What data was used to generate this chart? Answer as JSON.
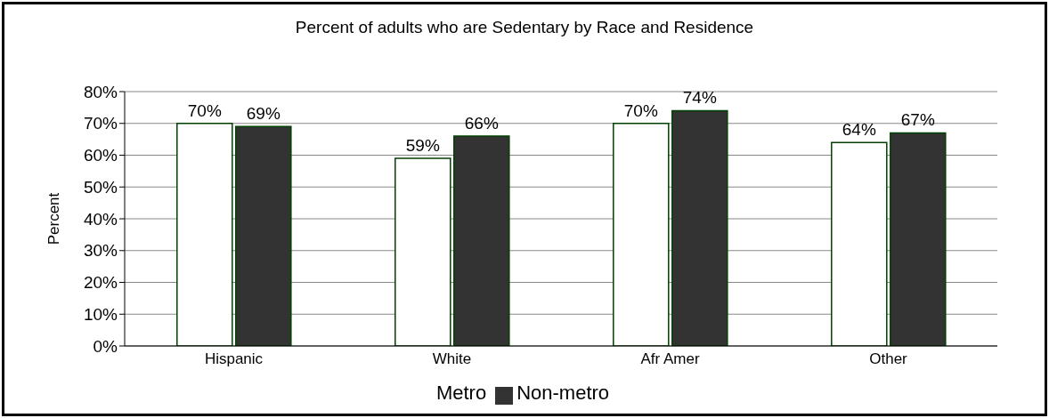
{
  "chart_data": {
    "type": "bar",
    "title": "Percent of adults who are Sedentary by Race and Residence",
    "ylabel": "Percent",
    "categories": [
      "Hispanic",
      "White",
      "Afr Amer",
      "Other"
    ],
    "series": [
      {
        "name": "Metro",
        "color": "#ffffff",
        "values": [
          70,
          59,
          70,
          64
        ],
        "value_labels": [
          "70%",
          "59%",
          "70%",
          "64%"
        ]
      },
      {
        "name": "Non-metro",
        "color": "#333333",
        "values": [
          69,
          66,
          74,
          67
        ],
        "value_labels": [
          "69%",
          "66%",
          "74%",
          "67%"
        ]
      }
    ],
    "ylim": [
      0,
      80
    ],
    "yticks": [
      {
        "value": 0,
        "label": "0%"
      },
      {
        "value": 10,
        "label": "10%"
      },
      {
        "value": 20,
        "label": "20%"
      },
      {
        "value": 30,
        "label": "30%"
      },
      {
        "value": 40,
        "label": "40%"
      },
      {
        "value": 50,
        "label": "50%"
      },
      {
        "value": 60,
        "label": "60%"
      },
      {
        "value": 70,
        "label": "70%"
      },
      {
        "value": 80,
        "label": "80%"
      }
    ],
    "grid": "y",
    "legend": "bottom"
  }
}
